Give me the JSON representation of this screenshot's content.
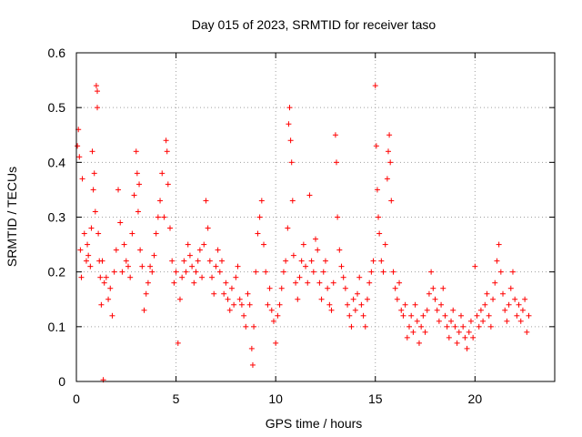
{
  "chart_data": {
    "type": "scatter",
    "title": "Day 015 of 2023, SRMTID for receiver taso",
    "xlabel": "GPS time / hours",
    "ylabel": "SRMTID / TECUs",
    "xlim": [
      0,
      24
    ],
    "ylim": [
      0,
      0.6
    ],
    "x_ticks": [
      0,
      5,
      10,
      15,
      20
    ],
    "x_tick_labels": [
      "0",
      "5",
      "10",
      "15",
      "20"
    ],
    "y_ticks": [
      0,
      0.1,
      0.2,
      0.3,
      0.4,
      0.5,
      0.6
    ],
    "y_tick_labels": [
      "0",
      "0.1",
      "0.2",
      "0.3",
      "0.4",
      "0.5",
      "0.6"
    ],
    "grid": true,
    "marker": "+",
    "color": "#ff0000",
    "series": [
      {
        "name": "SRMTID",
        "points": [
          [
            0.05,
            0.43
          ],
          [
            0.1,
            0.46
          ],
          [
            0.15,
            0.41
          ],
          [
            0.2,
            0.24
          ],
          [
            0.25,
            0.19
          ],
          [
            0.3,
            0.37
          ],
          [
            0.4,
            0.27
          ],
          [
            0.5,
            0.22
          ],
          [
            0.55,
            0.25
          ],
          [
            0.6,
            0.23
          ],
          [
            0.7,
            0.21
          ],
          [
            0.75,
            0.28
          ],
          [
            0.8,
            0.42
          ],
          [
            0.85,
            0.35
          ],
          [
            0.9,
            0.38
          ],
          [
            0.95,
            0.31
          ],
          [
            1.0,
            0.54
          ],
          [
            1.05,
            0.53
          ],
          [
            1.05,
            0.5
          ],
          [
            1.1,
            0.27
          ],
          [
            1.15,
            0.22
          ],
          [
            1.2,
            0.19
          ],
          [
            1.25,
            0.14
          ],
          [
            1.3,
            0.22
          ],
          [
            1.35,
            0.003
          ],
          [
            1.4,
            0.18
          ],
          [
            1.5,
            0.19
          ],
          [
            1.6,
            0.15
          ],
          [
            1.7,
            0.17
          ],
          [
            1.8,
            0.12
          ],
          [
            1.9,
            0.2
          ],
          [
            2.0,
            0.24
          ],
          [
            2.1,
            0.35
          ],
          [
            2.2,
            0.29
          ],
          [
            2.3,
            0.2
          ],
          [
            2.4,
            0.25
          ],
          [
            2.5,
            0.22
          ],
          [
            2.6,
            0.21
          ],
          [
            2.7,
            0.19
          ],
          [
            2.8,
            0.27
          ],
          [
            2.9,
            0.34
          ],
          [
            3.0,
            0.42
          ],
          [
            3.05,
            0.38
          ],
          [
            3.1,
            0.31
          ],
          [
            3.15,
            0.36
          ],
          [
            3.2,
            0.24
          ],
          [
            3.3,
            0.21
          ],
          [
            3.4,
            0.13
          ],
          [
            3.5,
            0.16
          ],
          [
            3.6,
            0.18
          ],
          [
            3.7,
            0.21
          ],
          [
            3.8,
            0.2
          ],
          [
            3.9,
            0.23
          ],
          [
            4.0,
            0.27
          ],
          [
            4.1,
            0.3
          ],
          [
            4.2,
            0.33
          ],
          [
            4.3,
            0.38
          ],
          [
            4.4,
            0.3
          ],
          [
            4.5,
            0.44
          ],
          [
            4.55,
            0.42
          ],
          [
            4.6,
            0.36
          ],
          [
            4.7,
            0.28
          ],
          [
            4.8,
            0.22
          ],
          [
            4.9,
            0.18
          ],
          [
            5.0,
            0.2
          ],
          [
            5.1,
            0.07
          ],
          [
            5.2,
            0.15
          ],
          [
            5.3,
            0.19
          ],
          [
            5.4,
            0.22
          ],
          [
            5.5,
            0.2
          ],
          [
            5.6,
            0.25
          ],
          [
            5.7,
            0.23
          ],
          [
            5.8,
            0.21
          ],
          [
            5.9,
            0.18
          ],
          [
            6.0,
            0.2
          ],
          [
            6.1,
            0.22
          ],
          [
            6.2,
            0.24
          ],
          [
            6.3,
            0.19
          ],
          [
            6.4,
            0.25
          ],
          [
            6.5,
            0.33
          ],
          [
            6.6,
            0.28
          ],
          [
            6.7,
            0.22
          ],
          [
            6.8,
            0.19
          ],
          [
            6.9,
            0.16
          ],
          [
            7.0,
            0.21
          ],
          [
            7.1,
            0.24
          ],
          [
            7.2,
            0.2
          ],
          [
            7.3,
            0.22
          ],
          [
            7.4,
            0.16
          ],
          [
            7.5,
            0.18
          ],
          [
            7.6,
            0.15
          ],
          [
            7.7,
            0.13
          ],
          [
            7.8,
            0.17
          ],
          [
            7.9,
            0.14
          ],
          [
            8.0,
            0.19
          ],
          [
            8.1,
            0.21
          ],
          [
            8.2,
            0.15
          ],
          [
            8.3,
            0.14
          ],
          [
            8.4,
            0.12
          ],
          [
            8.5,
            0.1
          ],
          [
            8.6,
            0.16
          ],
          [
            8.7,
            0.14
          ],
          [
            8.8,
            0.06
          ],
          [
            8.85,
            0.03
          ],
          [
            8.9,
            0.1
          ],
          [
            9.0,
            0.2
          ],
          [
            9.1,
            0.27
          ],
          [
            9.2,
            0.3
          ],
          [
            9.3,
            0.33
          ],
          [
            9.4,
            0.25
          ],
          [
            9.5,
            0.2
          ],
          [
            9.6,
            0.14
          ],
          [
            9.7,
            0.17
          ],
          [
            9.8,
            0.13
          ],
          [
            9.9,
            0.11
          ],
          [
            10.0,
            0.07
          ],
          [
            10.1,
            0.12
          ],
          [
            10.2,
            0.14
          ],
          [
            10.3,
            0.17
          ],
          [
            10.4,
            0.2
          ],
          [
            10.5,
            0.22
          ],
          [
            10.6,
            0.28
          ],
          [
            10.65,
            0.47
          ],
          [
            10.7,
            0.5
          ],
          [
            10.75,
            0.44
          ],
          [
            10.8,
            0.4
          ],
          [
            10.85,
            0.33
          ],
          [
            10.9,
            0.23
          ],
          [
            11.0,
            0.18
          ],
          [
            11.1,
            0.15
          ],
          [
            11.2,
            0.19
          ],
          [
            11.3,
            0.22
          ],
          [
            11.4,
            0.25
          ],
          [
            11.5,
            0.21
          ],
          [
            11.6,
            0.18
          ],
          [
            11.7,
            0.34
          ],
          [
            11.8,
            0.22
          ],
          [
            11.9,
            0.2
          ],
          [
            12.0,
            0.26
          ],
          [
            12.1,
            0.24
          ],
          [
            12.2,
            0.18
          ],
          [
            12.3,
            0.15
          ],
          [
            12.4,
            0.2
          ],
          [
            12.5,
            0.22
          ],
          [
            12.6,
            0.17
          ],
          [
            12.7,
            0.14
          ],
          [
            12.8,
            0.13
          ],
          [
            12.9,
            0.18
          ],
          [
            13.0,
            0.45
          ],
          [
            13.05,
            0.4
          ],
          [
            13.1,
            0.3
          ],
          [
            13.2,
            0.24
          ],
          [
            13.3,
            0.21
          ],
          [
            13.4,
            0.19
          ],
          [
            13.5,
            0.17
          ],
          [
            13.6,
            0.14
          ],
          [
            13.7,
            0.12
          ],
          [
            13.8,
            0.1
          ],
          [
            13.9,
            0.15
          ],
          [
            14.0,
            0.13
          ],
          [
            14.1,
            0.16
          ],
          [
            14.2,
            0.19
          ],
          [
            14.3,
            0.14
          ],
          [
            14.4,
            0.12
          ],
          [
            14.5,
            0.1
          ],
          [
            14.6,
            0.15
          ],
          [
            14.7,
            0.18
          ],
          [
            14.8,
            0.2
          ],
          [
            14.9,
            0.22
          ],
          [
            15.0,
            0.54
          ],
          [
            15.05,
            0.43
          ],
          [
            15.1,
            0.35
          ],
          [
            15.15,
            0.3
          ],
          [
            15.2,
            0.27
          ],
          [
            15.3,
            0.22
          ],
          [
            15.4,
            0.2
          ],
          [
            15.5,
            0.25
          ],
          [
            15.6,
            0.37
          ],
          [
            15.65,
            0.42
          ],
          [
            15.7,
            0.45
          ],
          [
            15.75,
            0.4
          ],
          [
            15.8,
            0.33
          ],
          [
            15.9,
            0.2
          ],
          [
            16.0,
            0.17
          ],
          [
            16.1,
            0.15
          ],
          [
            16.2,
            0.18
          ],
          [
            16.3,
            0.13
          ],
          [
            16.4,
            0.12
          ],
          [
            16.5,
            0.14
          ],
          [
            16.6,
            0.08
          ],
          [
            16.7,
            0.1
          ],
          [
            16.8,
            0.12
          ],
          [
            16.9,
            0.09
          ],
          [
            17.0,
            0.14
          ],
          [
            17.1,
            0.11
          ],
          [
            17.2,
            0.07
          ],
          [
            17.3,
            0.1
          ],
          [
            17.4,
            0.12
          ],
          [
            17.5,
            0.09
          ],
          [
            17.6,
            0.13
          ],
          [
            17.7,
            0.16
          ],
          [
            17.8,
            0.2
          ],
          [
            17.9,
            0.17
          ],
          [
            18.0,
            0.15
          ],
          [
            18.1,
            0.13
          ],
          [
            18.2,
            0.11
          ],
          [
            18.3,
            0.14
          ],
          [
            18.4,
            0.17
          ],
          [
            18.5,
            0.12
          ],
          [
            18.6,
            0.1
          ],
          [
            18.7,
            0.08
          ],
          [
            18.8,
            0.11
          ],
          [
            18.9,
            0.13
          ],
          [
            19.0,
            0.1
          ],
          [
            19.1,
            0.07
          ],
          [
            19.2,
            0.09
          ],
          [
            19.3,
            0.12
          ],
          [
            19.4,
            0.1
          ],
          [
            19.5,
            0.08
          ],
          [
            19.6,
            0.06
          ],
          [
            19.7,
            0.09
          ],
          [
            19.8,
            0.11
          ],
          [
            19.9,
            0.08
          ],
          [
            20.0,
            0.21
          ],
          [
            20.1,
            0.12
          ],
          [
            20.2,
            0.1
          ],
          [
            20.3,
            0.13
          ],
          [
            20.4,
            0.11
          ],
          [
            20.5,
            0.14
          ],
          [
            20.6,
            0.16
          ],
          [
            20.7,
            0.12
          ],
          [
            20.8,
            0.1
          ],
          [
            20.9,
            0.15
          ],
          [
            21.0,
            0.18
          ],
          [
            21.1,
            0.22
          ],
          [
            21.2,
            0.25
          ],
          [
            21.3,
            0.2
          ],
          [
            21.4,
            0.16
          ],
          [
            21.5,
            0.13
          ],
          [
            21.6,
            0.11
          ],
          [
            21.7,
            0.14
          ],
          [
            21.8,
            0.17
          ],
          [
            21.9,
            0.2
          ],
          [
            22.0,
            0.15
          ],
          [
            22.1,
            0.12
          ],
          [
            22.2,
            0.14
          ],
          [
            22.3,
            0.11
          ],
          [
            22.4,
            0.13
          ],
          [
            22.5,
            0.15
          ],
          [
            22.6,
            0.09
          ],
          [
            22.7,
            0.12
          ]
        ]
      }
    ]
  }
}
